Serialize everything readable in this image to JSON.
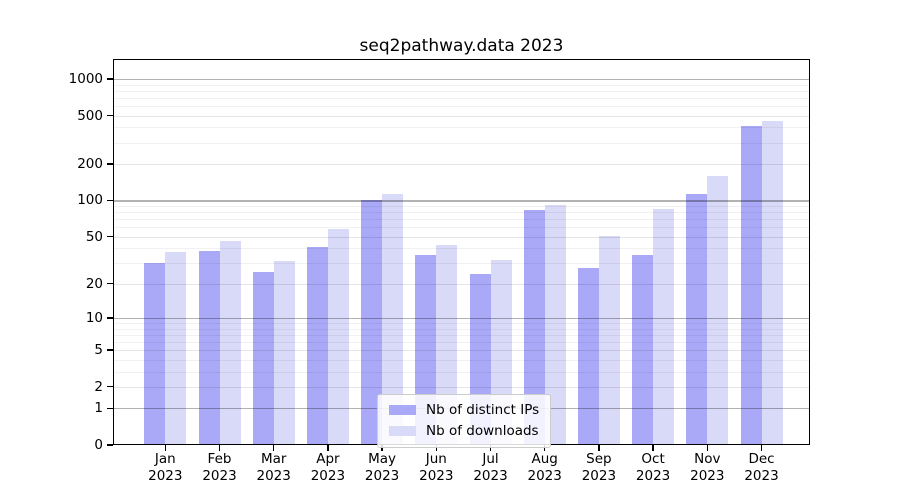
{
  "title": "seq2pathway.data 2023",
  "chart_data": {
    "type": "bar",
    "title": "seq2pathway.data 2023",
    "categories": [
      "Jan 2023",
      "Feb 2023",
      "Mar 2023",
      "Apr 2023",
      "May 2023",
      "Jun 2023",
      "Jul 2023",
      "Aug 2023",
      "Sep 2023",
      "Oct 2023",
      "Nov 2023",
      "Dec 2023"
    ],
    "series": [
      {
        "name": "Nb of distinct IPs",
        "color": "#a9a9f7",
        "values": [
          30,
          38,
          25,
          41,
          100,
          35,
          24,
          84,
          27,
          35,
          113,
          410
        ]
      },
      {
        "name": "Nb of downloads",
        "color": "#d9d9f8",
        "values": [
          37,
          46,
          31,
          58,
          114,
          43,
          32,
          92,
          51,
          85,
          160,
          455
        ]
      }
    ],
    "yscale": "log1p",
    "yticks": [
      0,
      1,
      2,
      5,
      10,
      20,
      50,
      100,
      200,
      500,
      1000
    ],
    "ylim": [
      0,
      1460
    ],
    "xlabel": "",
    "ylabel": "",
    "grid": true,
    "legend_position": "inside-bottom-center"
  }
}
